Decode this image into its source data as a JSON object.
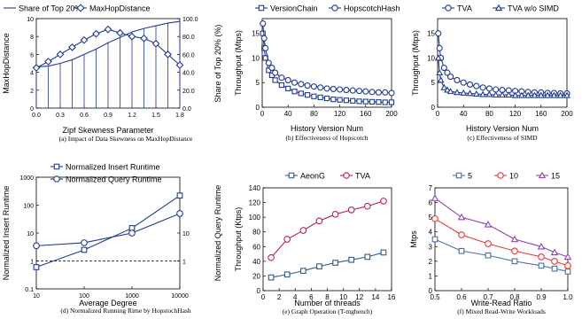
{
  "figure": {
    "background": "#ffffff",
    "line_color": "#1f3a93"
  },
  "chart_data": [
    {
      "id": "a",
      "type": "line",
      "caption": "(a) Impact of Data Skewness on MaxHopDistance",
      "xlabel": "Zipf Skewness Parameter",
      "ylabel": "MaxHopDistance",
      "ylabel_right": "Share of Top 20% (%)",
      "x": [
        0,
        0.15,
        0.3,
        0.45,
        0.6,
        0.75,
        0.9,
        1.05,
        1.2,
        1.35,
        1.5,
        1.65,
        1.8
      ],
      "xlim": [
        0,
        1.8
      ],
      "xticks": [
        "0.0",
        "0.3",
        "0.6",
        "0.9",
        "1.2",
        "1.5",
        "1.8"
      ],
      "ylim": [
        0,
        10
      ],
      "yticks": [
        "0",
        "2",
        "4",
        "6",
        "8",
        "10"
      ],
      "ylim_right": [
        0,
        100
      ],
      "yticks_right": [
        "0.0",
        "20.0",
        "40.0",
        "60.0",
        "80.0",
        "100.0"
      ],
      "legend": [
        "Share of Top 20%",
        "MaxHopDistance"
      ],
      "legend_position": "top",
      "series": [
        {
          "name": "Share of Top 20%",
          "axis": "right",
          "marker": "none",
          "bars": true,
          "values": [
            46,
            47,
            50,
            54,
            60,
            66,
            73,
            79,
            85,
            89,
            92,
            95,
            97
          ]
        },
        {
          "name": "MaxHopDistance",
          "axis": "left",
          "marker": "diamond",
          "values": [
            4.5,
            5.2,
            6,
            6.8,
            7.6,
            8.3,
            8.8,
            8.4,
            8,
            7.8,
            7.2,
            6,
            4.8
          ]
        }
      ]
    },
    {
      "id": "b",
      "type": "line",
      "caption": "(b) Effectiveness of Hopscotch",
      "xlabel": "History Version Num",
      "ylabel": "Throughput (Mtps)",
      "x": [
        1,
        3,
        5,
        10,
        15,
        20,
        30,
        40,
        50,
        60,
        70,
        80,
        90,
        100,
        110,
        120,
        130,
        140,
        150,
        160,
        170,
        180,
        190,
        200
      ],
      "xlim": [
        0,
        200
      ],
      "xticks": [
        "0",
        "40",
        "80",
        "120",
        "160",
        "200"
      ],
      "ylim": [
        0,
        18
      ],
      "yticks": [
        "0",
        "5",
        "10",
        "15"
      ],
      "legend": [
        "VersionChain",
        "HopscotchHash"
      ],
      "legend_position": "top",
      "series": [
        {
          "name": "VersionChain",
          "marker": "square",
          "values": [
            15,
            12,
            10,
            7.5,
            6.5,
            5.5,
            4.5,
            3.8,
            3.2,
            2.8,
            2.5,
            2.2,
            2,
            1.8,
            1.6,
            1.5,
            1.4,
            1.3,
            1.2,
            1.15,
            1.1,
            1.05,
            1,
            1
          ]
        },
        {
          "name": "HopscotchHash",
          "marker": "circle",
          "values": [
            17,
            14,
            12,
            9,
            8,
            7,
            6,
            5.5,
            5,
            4.7,
            4.4,
            4.2,
            4,
            3.8,
            3.7,
            3.6,
            3.5,
            3.4,
            3.3,
            3.2,
            3.1,
            3,
            3,
            2.9
          ]
        }
      ]
    },
    {
      "id": "c",
      "type": "line",
      "caption": "(c) Effectiveness of SIMD",
      "xlabel": "History Version Num",
      "ylabel": "Throughput (Mtps)",
      "x": [
        1,
        3,
        5,
        10,
        15,
        20,
        30,
        40,
        50,
        60,
        70,
        80,
        90,
        100,
        110,
        120,
        130,
        140,
        150,
        160,
        170,
        180,
        190,
        200
      ],
      "xlim": [
        0,
        200
      ],
      "xticks": [
        "0",
        "40",
        "80",
        "120",
        "160",
        "200"
      ],
      "ylim": [
        0,
        18
      ],
      "yticks": [
        "0",
        "5",
        "10",
        "15"
      ],
      "legend": [
        "TVA",
        "TVA w/o SIMD"
      ],
      "legend_position": "top",
      "series": [
        {
          "name": "TVA",
          "marker": "circle",
          "values": [
            15,
            12,
            10,
            8,
            7,
            6.2,
            5.5,
            5,
            4.6,
            4.3,
            4,
            3.8,
            3.6,
            3.5,
            3.4,
            3.3,
            3.2,
            3.1,
            3,
            3,
            2.9,
            2.9,
            2.8,
            2.8
          ]
        },
        {
          "name": "TVA w/o SIMD",
          "marker": "triangle",
          "values": [
            10,
            7,
            5.5,
            4,
            3.5,
            3.2,
            3,
            2.9,
            2.8,
            2.7,
            2.6,
            2.6,
            2.5,
            2.5,
            2.5,
            2.4,
            2.4,
            2.4,
            2.4,
            2.4,
            2.4,
            2.4,
            2.4,
            2.4
          ]
        }
      ]
    },
    {
      "id": "d",
      "type": "line",
      "caption": "(d) Normalized Running Rime by HopstochHash",
      "xlabel": "Average Degree",
      "ylabel": "Normalized Insert Runtime",
      "ylabel_right": "Normalized Query Runtime",
      "x": [
        10,
        100,
        1000,
        10000
      ],
      "xscale": "log",
      "xlim": [
        10,
        10000
      ],
      "xticks": [
        "10",
        "100",
        "1000",
        "10000"
      ],
      "yscale": "log",
      "ylim": [
        0.1,
        1000
      ],
      "yticks": [
        "0.1",
        "1",
        "10",
        "100",
        "1000"
      ],
      "yscale_right": "log",
      "ylim_right": [
        0.1,
        1000
      ],
      "yticks_right": [
        "1",
        "10"
      ],
      "reference_line": {
        "y": 1,
        "style": "dashed"
      },
      "legend": [
        "Normalized Insert Runtime",
        "Normalized Query Runtime"
      ],
      "legend_position": "top-left",
      "series": [
        {
          "name": "Normalized Insert Runtime",
          "marker": "square",
          "values": [
            0.6,
            2.5,
            15,
            220
          ]
        },
        {
          "name": "Normalized Query Runtime",
          "marker": "circle",
          "values": [
            3.5,
            4.5,
            10,
            50
          ]
        }
      ]
    },
    {
      "id": "e",
      "type": "line",
      "caption": "(e) Graph Operation (T-mgbench)",
      "xlabel": "Number of threads",
      "ylabel": "Throughput (Ktps)",
      "x": [
        1,
        3,
        5,
        7,
        9,
        11,
        13,
        15
      ],
      "xlim": [
        0,
        16
      ],
      "xticks": [
        "0",
        "2",
        "4",
        "6",
        "8",
        "10",
        "12",
        "14",
        "16"
      ],
      "ylim": [
        0,
        140
      ],
      "yticks": [
        "0",
        "20",
        "40",
        "60",
        "80",
        "100",
        "120",
        "140"
      ],
      "legend": [
        "AeonG",
        "TVA"
      ],
      "legend_position": "top",
      "series": [
        {
          "name": "AeonG",
          "marker": "square",
          "color": "#2e5c8a",
          "values": [
            18,
            22,
            27,
            33,
            38,
            42,
            46,
            52
          ]
        },
        {
          "name": "TVA",
          "marker": "circle",
          "color": "#c2185b",
          "values": [
            45,
            70,
            82,
            95,
            104,
            110,
            115,
            122
          ]
        }
      ]
    },
    {
      "id": "f",
      "type": "line",
      "caption": "(f) Mixed Read-Write Workloads",
      "xlabel": "Write-Read Ratio",
      "ylabel": "Mtps",
      "x": [
        0.5,
        0.6,
        0.7,
        0.8,
        0.9,
        0.95,
        1.0
      ],
      "xlim": [
        0.5,
        1.0
      ],
      "xticks": [
        "0.5",
        "0.6",
        "0.7",
        "0.8",
        "0.9",
        "1.0"
      ],
      "ylim": [
        0,
        7
      ],
      "yticks": [
        "0",
        "1",
        "2",
        "3",
        "4",
        "5",
        "6",
        "7"
      ],
      "legend": [
        "5",
        "10",
        "15"
      ],
      "legend_position": "top",
      "series": [
        {
          "name": "5",
          "marker": "square",
          "color": "#4a6fa5",
          "values": [
            3.5,
            2.7,
            2.4,
            2,
            1.7,
            1.5,
            1.3
          ]
        },
        {
          "name": "10",
          "marker": "circle",
          "color": "#e53935",
          "values": [
            4.9,
            3.8,
            3.2,
            2.7,
            2.3,
            2,
            1.7
          ]
        },
        {
          "name": "15",
          "marker": "triangle",
          "color": "#8e44ad",
          "values": [
            6.3,
            5,
            4.5,
            3.5,
            3,
            2.6,
            2.3
          ]
        }
      ]
    }
  ]
}
